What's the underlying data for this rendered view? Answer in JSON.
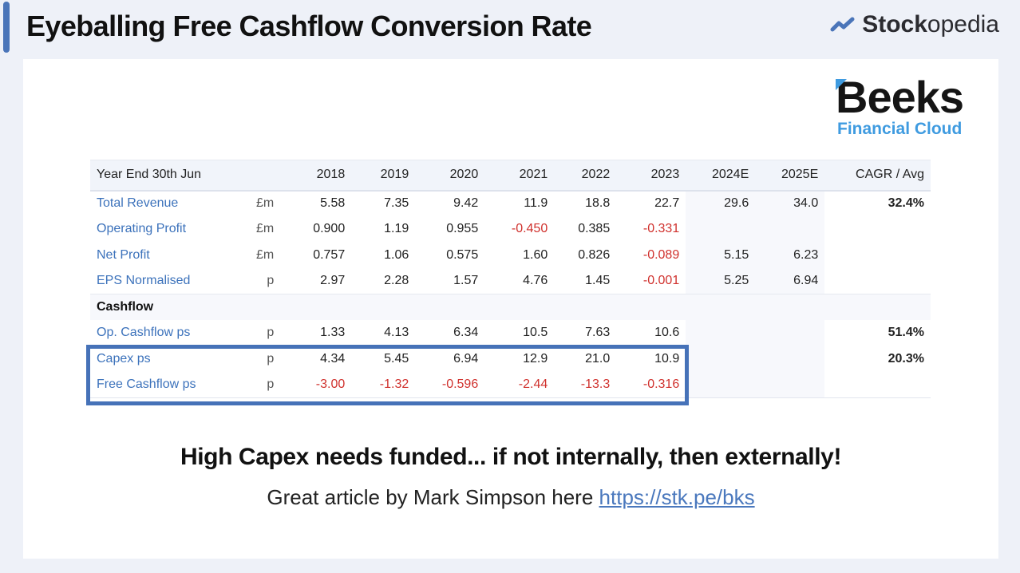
{
  "header": {
    "title": "Eyeballing Free Cashflow Conversion Rate",
    "brand_bold": "Stock",
    "brand_light": "opedia",
    "brand_icon": "trend-line-icon",
    "accent_color": "#4a75b9"
  },
  "logo": {
    "word": "Beeks",
    "subtitle": "Financial Cloud",
    "accent_color": "#3f9be0"
  },
  "table": {
    "header": {
      "label": "Year End 30th Jun",
      "unit": "",
      "years": [
        "2018",
        "2019",
        "2020",
        "2021",
        "2022",
        "2023",
        "2024E",
        "2025E"
      ],
      "cagr": "CAGR / Avg"
    },
    "rows": [
      {
        "label": "Total Revenue",
        "unit": "£m",
        "values": [
          "5.58",
          "7.35",
          "9.42",
          "11.9",
          "18.8",
          "22.7",
          "29.6",
          "34.0"
        ],
        "cagr": "32.4%"
      },
      {
        "label": "Operating Profit",
        "unit": "£m",
        "values": [
          "0.900",
          "1.19",
          "0.955",
          "-0.450",
          "0.385",
          "-0.331",
          "",
          ""
        ],
        "cagr": ""
      },
      {
        "label": "Net Profit",
        "unit": "£m",
        "values": [
          "0.757",
          "1.06",
          "0.575",
          "1.60",
          "0.826",
          "-0.089",
          "5.15",
          "6.23"
        ],
        "cagr": ""
      },
      {
        "label": "EPS Normalised",
        "unit": "p",
        "values": [
          "2.97",
          "2.28",
          "1.57",
          "4.76",
          "1.45",
          "-0.001",
          "5.25",
          "6.94"
        ],
        "cagr": ""
      }
    ],
    "section": "Cashflow",
    "cashflow_rows": [
      {
        "label": "Op. Cashflow ps",
        "unit": "p",
        "values": [
          "1.33",
          "4.13",
          "6.34",
          "10.5",
          "7.63",
          "10.6",
          "",
          ""
        ],
        "cagr": "51.4%"
      },
      {
        "label": "Capex ps",
        "unit": "p",
        "values": [
          "4.34",
          "5.45",
          "6.94",
          "12.9",
          "21.0",
          "10.9",
          "",
          ""
        ],
        "cagr": "20.3%"
      },
      {
        "label": "Free Cashflow ps",
        "unit": "p",
        "values": [
          "-3.00",
          "-1.32",
          "-0.596",
          "-2.44",
          "-13.3",
          "-0.316",
          "",
          ""
        ],
        "cagr": ""
      }
    ],
    "negative_color": "#d0312d",
    "highlight_color": "#4672b8"
  },
  "footer": {
    "headline": "High Capex needs funded... if not internally, then externally!",
    "subline_text": "Great article by Mark Simpson here ",
    "link_text": "https://stk.pe/bks"
  }
}
